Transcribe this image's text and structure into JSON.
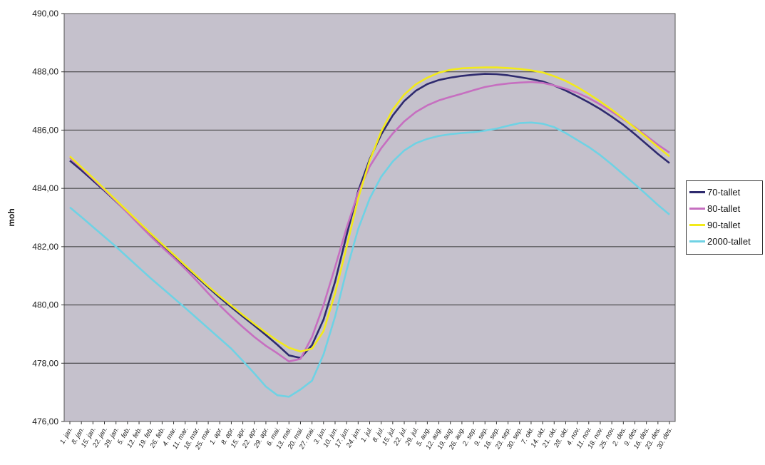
{
  "chart_data": {
    "type": "line",
    "title": "",
    "ylabel": "moh",
    "xlabel": "",
    "ylim": [
      476,
      490
    ],
    "yticks": [
      "476,00",
      "478,00",
      "480,00",
      "482,00",
      "484,00",
      "486,00",
      "488,00",
      "490,00"
    ],
    "categories": [
      "1. jan.",
      "8. jan.",
      "15. jan.",
      "22. jan.",
      "29. jan.",
      "5. feb.",
      "12. feb.",
      "19. feb.",
      "26. feb.",
      "4. mar.",
      "11. mar.",
      "18. mar.",
      "25. mar.",
      "1. apr.",
      "8. apr.",
      "15. apr.",
      "22. apr.",
      "29. apr.",
      "6. mai.",
      "13. mai.",
      "20. mai.",
      "27. mai.",
      "3. jun.",
      "10. jun.",
      "17. jun.",
      "24. jun.",
      "1. jul.",
      "8. jul.",
      "15. jul.",
      "22. jul.",
      "29. jul.",
      "5. aug.",
      "12. aug.",
      "19. aug.",
      "26. aug.",
      "2. sep.",
      "9. sep.",
      "16. sep.",
      "23. sep.",
      "30. sep.",
      "7. okt.",
      "14. okt.",
      "21. okt.",
      "28. okt.",
      "4. nov.",
      "11. nov.",
      "18. nov.",
      "25. nov.",
      "2. des.",
      "9. des.",
      "16. des.",
      "23. des.",
      "30. des."
    ],
    "grid": true,
    "legend_position": "right",
    "series": [
      {
        "name": "70-tallet",
        "color": "#2e2a6e",
        "values": [
          484.95,
          484.62,
          484.27,
          483.92,
          483.55,
          483.17,
          482.79,
          482.41,
          482.04,
          481.68,
          481.32,
          480.96,
          480.6,
          480.25,
          479.92,
          479.6,
          479.29,
          478.97,
          478.63,
          478.27,
          478.18,
          478.62,
          479.5,
          480.8,
          482.4,
          483.9,
          485.0,
          485.85,
          486.5,
          487.0,
          487.35,
          487.58,
          487.72,
          487.8,
          487.86,
          487.9,
          487.93,
          487.92,
          487.88,
          487.82,
          487.75,
          487.67,
          487.53,
          487.36,
          487.16,
          486.95,
          486.72,
          486.46,
          486.18,
          485.86,
          485.52,
          485.18,
          484.87
        ]
      },
      {
        "name": "80-tallet",
        "color": "#c66fc0",
        "values": [
          485.05,
          484.7,
          484.33,
          483.95,
          483.56,
          483.16,
          482.76,
          482.36,
          481.98,
          481.62,
          481.24,
          480.83,
          480.4,
          479.98,
          479.6,
          479.24,
          478.9,
          478.6,
          478.34,
          478.06,
          478.15,
          478.9,
          480.0,
          481.3,
          482.65,
          483.85,
          484.75,
          485.38,
          485.88,
          486.3,
          486.62,
          486.85,
          487.02,
          487.14,
          487.25,
          487.37,
          487.48,
          487.55,
          487.6,
          487.63,
          487.65,
          487.62,
          487.53,
          487.42,
          487.28,
          487.1,
          486.88,
          486.63,
          486.37,
          486.1,
          485.8,
          485.5,
          485.23
        ]
      },
      {
        "name": "90-tallet",
        "color": "#f2ea1a",
        "values": [
          485.1,
          484.73,
          484.36,
          483.98,
          483.6,
          483.22,
          482.84,
          482.46,
          482.09,
          481.73,
          481.36,
          481.0,
          480.64,
          480.3,
          479.98,
          479.66,
          479.35,
          479.05,
          478.77,
          478.53,
          478.4,
          478.5,
          479.1,
          480.4,
          482.0,
          483.65,
          484.95,
          485.95,
          486.7,
          487.22,
          487.57,
          487.8,
          487.97,
          488.07,
          488.12,
          488.14,
          488.15,
          488.15,
          488.13,
          488.1,
          488.05,
          487.98,
          487.85,
          487.69,
          487.48,
          487.24,
          486.98,
          486.7,
          486.4,
          486.08,
          485.75,
          485.42,
          485.1
        ]
      },
      {
        "name": "2000-tallet",
        "color": "#6fd2e4",
        "values": [
          483.35,
          483.02,
          482.68,
          482.34,
          482.0,
          481.64,
          481.28,
          480.92,
          480.58,
          480.24,
          479.9,
          479.55,
          479.2,
          478.85,
          478.5,
          478.08,
          477.65,
          477.2,
          476.9,
          476.85,
          477.1,
          477.4,
          478.3,
          479.6,
          481.2,
          482.6,
          483.65,
          484.4,
          484.92,
          485.3,
          485.55,
          485.7,
          485.8,
          485.86,
          485.9,
          485.93,
          485.98,
          486.05,
          486.15,
          486.24,
          486.26,
          486.22,
          486.1,
          485.9,
          485.66,
          485.42,
          485.14,
          484.82,
          484.48,
          484.14,
          483.79,
          483.43,
          483.1
        ]
      }
    ]
  }
}
